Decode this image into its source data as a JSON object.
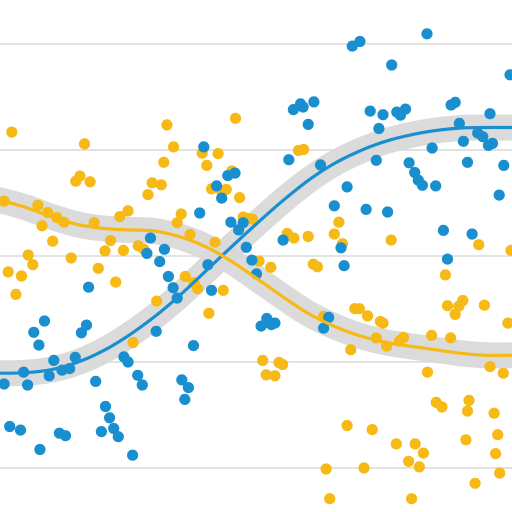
{
  "chart_data": {
    "type": "scatter",
    "title": "",
    "xlabel": "",
    "ylabel": "",
    "xlim": [
      0,
      100
    ],
    "ylim": [
      0,
      100
    ],
    "grid": true,
    "gridlines_y": [
      8.6,
      29.3,
      50.0,
      70.7,
      91.4
    ],
    "series": [
      {
        "color": "#1a8fd0",
        "smooth_band_color": "#d9d9d9",
        "trend": [
          [
            0,
            27.1
          ],
          [
            5,
            27.2
          ],
          [
            10,
            27.8
          ],
          [
            15,
            29.2
          ],
          [
            20,
            31.4
          ],
          [
            25,
            34.4
          ],
          [
            30,
            38.0
          ],
          [
            35,
            42.2
          ],
          [
            40,
            46.9
          ],
          [
            45,
            51.6
          ],
          [
            50,
            56.2
          ],
          [
            55,
            60.6
          ],
          [
            60,
            64.6
          ],
          [
            65,
            67.9
          ],
          [
            70,
            70.4
          ],
          [
            75,
            72.3
          ],
          [
            80,
            73.6
          ],
          [
            85,
            74.5
          ],
          [
            90,
            75.0
          ],
          [
            95,
            75.1
          ],
          [
            100,
            75.1
          ]
        ],
        "points": [
          [
            0.8,
            25.0
          ],
          [
            1.9,
            16.7
          ],
          [
            4.0,
            16.0
          ],
          [
            4.6,
            27.3
          ],
          [
            5.4,
            24.8
          ],
          [
            6.6,
            35.1
          ],
          [
            7.6,
            32.6
          ],
          [
            7.8,
            12.2
          ],
          [
            8.7,
            37.3
          ],
          [
            9.6,
            26.6
          ],
          [
            10.5,
            29.6
          ],
          [
            11.6,
            15.4
          ],
          [
            12.1,
            27.7
          ],
          [
            12.8,
            14.9
          ],
          [
            13.6,
            28.0
          ],
          [
            14.7,
            30.2
          ],
          [
            15.9,
            35.0
          ],
          [
            16.9,
            36.5
          ],
          [
            17.3,
            43.9
          ],
          [
            18.7,
            25.5
          ],
          [
            19.8,
            15.7
          ],
          [
            20.6,
            20.6
          ],
          [
            21.4,
            18.4
          ],
          [
            22.2,
            16.3
          ],
          [
            23.1,
            14.7
          ],
          [
            24.2,
            30.3
          ],
          [
            25.0,
            29.3
          ],
          [
            25.9,
            11.1
          ],
          [
            26.9,
            26.7
          ],
          [
            27.8,
            24.8
          ],
          [
            28.7,
            50.5
          ],
          [
            29.4,
            53.5
          ],
          [
            30.5,
            35.3
          ],
          [
            31.2,
            48.9
          ],
          [
            32.1,
            51.3
          ],
          [
            32.9,
            46.0
          ],
          [
            33.8,
            43.8
          ],
          [
            34.6,
            41.8
          ],
          [
            35.5,
            25.8
          ],
          [
            36.1,
            22.0
          ],
          [
            36.8,
            24.3
          ],
          [
            37.8,
            32.5
          ],
          [
            39.0,
            58.4
          ],
          [
            39.8,
            71.3
          ],
          [
            40.6,
            48.3
          ],
          [
            41.3,
            43.3
          ],
          [
            42.3,
            63.7
          ],
          [
            43.3,
            61.3
          ],
          [
            44.5,
            65.7
          ],
          [
            45.1,
            56.6
          ],
          [
            45.9,
            66.2
          ],
          [
            46.6,
            55.1
          ],
          [
            47.5,
            56.5
          ],
          [
            48.1,
            51.7
          ],
          [
            49.2,
            49.2
          ],
          [
            50.1,
            46.5
          ],
          [
            51.0,
            36.3
          ],
          [
            52.1,
            37.8
          ],
          [
            53.0,
            36.6
          ],
          [
            53.7,
            36.9
          ],
          [
            55.3,
            53.1
          ],
          [
            56.4,
            68.8
          ],
          [
            57.3,
            78.6
          ],
          [
            58.7,
            79.7
          ],
          [
            59.2,
            79.1
          ],
          [
            60.2,
            75.7
          ],
          [
            61.3,
            80.1
          ],
          [
            62.6,
            67.8
          ],
          [
            63.2,
            35.9
          ],
          [
            64.2,
            38.0
          ],
          [
            65.3,
            59.8
          ],
          [
            66.6,
            51.6
          ],
          [
            67.2,
            48.1
          ],
          [
            67.8,
            63.5
          ],
          [
            68.8,
            91.0
          ],
          [
            70.3,
            91.9
          ],
          [
            71.5,
            59.1
          ],
          [
            72.3,
            78.3
          ],
          [
            73.5,
            68.7
          ],
          [
            74.0,
            74.9
          ],
          [
            74.8,
            77.6
          ],
          [
            75.7,
            58.6
          ],
          [
            76.5,
            87.3
          ],
          [
            77.5,
            78.1
          ],
          [
            78.2,
            77.5
          ],
          [
            79.2,
            78.7
          ],
          [
            79.9,
            68.2
          ],
          [
            81.0,
            66.3
          ],
          [
            81.7,
            64.8
          ],
          [
            82.5,
            63.8
          ],
          [
            83.4,
            93.4
          ],
          [
            84.4,
            71.1
          ],
          [
            85.1,
            63.7
          ],
          [
            86.6,
            55.0
          ],
          [
            87.4,
            49.4
          ],
          [
            88.1,
            79.5
          ],
          [
            88.9,
            80.0
          ],
          [
            89.7,
            75.9
          ],
          [
            90.5,
            72.4
          ],
          [
            91.3,
            68.3
          ],
          [
            92.2,
            54.3
          ],
          [
            93.3,
            74.0
          ],
          [
            94.3,
            73.3
          ],
          [
            95.4,
            71.6
          ],
          [
            95.7,
            77.8
          ],
          [
            96.2,
            72.0
          ],
          [
            97.5,
            61.9
          ],
          [
            98.4,
            67.7
          ],
          [
            99.6,
            85.4
          ]
        ]
      },
      {
        "color": "#f6b915",
        "smooth_band_color": "#d9d9d9",
        "trend": [
          [
            0,
            60.9
          ],
          [
            5,
            59.5
          ],
          [
            10,
            57.7
          ],
          [
            15,
            56.2
          ],
          [
            20,
            55.4
          ],
          [
            25,
            55.1
          ],
          [
            30,
            54.9
          ],
          [
            35,
            53.8
          ],
          [
            40,
            51.9
          ],
          [
            45,
            49.1
          ],
          [
            50,
            45.7
          ],
          [
            55,
            42.2
          ],
          [
            60,
            38.9
          ],
          [
            65,
            36.4
          ],
          [
            70,
            34.5
          ],
          [
            75,
            33.2
          ],
          [
            80,
            32.4
          ],
          [
            85,
            31.7
          ],
          [
            90,
            31.0
          ],
          [
            95,
            30.6
          ],
          [
            100,
            30.6
          ]
        ],
        "points": [
          [
            0.8,
            60.7
          ],
          [
            1.6,
            46.9
          ],
          [
            2.3,
            74.2
          ],
          [
            3.1,
            42.5
          ],
          [
            4.2,
            46.1
          ],
          [
            5.5,
            50.2
          ],
          [
            6.4,
            48.3
          ],
          [
            7.4,
            59.9
          ],
          [
            8.2,
            55.9
          ],
          [
            9.3,
            58.5
          ],
          [
            10.3,
            52.9
          ],
          [
            11.1,
            57.5
          ],
          [
            12.5,
            56.6
          ],
          [
            13.9,
            49.6
          ],
          [
            14.8,
            64.6
          ],
          [
            15.6,
            65.6
          ],
          [
            16.5,
            71.9
          ],
          [
            17.6,
            64.5
          ],
          [
            18.4,
            56.5
          ],
          [
            19.2,
            47.6
          ],
          [
            20.5,
            51.0
          ],
          [
            21.6,
            53.0
          ],
          [
            22.6,
            44.9
          ],
          [
            23.4,
            57.7
          ],
          [
            24.1,
            51.1
          ],
          [
            25.0,
            58.8
          ],
          [
            26.0,
            33.1
          ],
          [
            27.0,
            52.0
          ],
          [
            28.1,
            51.3
          ],
          [
            28.9,
            62.0
          ],
          [
            29.7,
            64.3
          ],
          [
            30.6,
            41.2
          ],
          [
            31.5,
            63.9
          ],
          [
            32.0,
            68.3
          ],
          [
            32.6,
            75.6
          ],
          [
            33.9,
            71.3
          ],
          [
            34.6,
            56.5
          ],
          [
            35.4,
            58.2
          ],
          [
            36.2,
            46.0
          ],
          [
            37.1,
            54.2
          ],
          [
            37.9,
            44.8
          ],
          [
            38.6,
            43.6
          ],
          [
            39.5,
            70.1
          ],
          [
            40.4,
            67.7
          ],
          [
            40.8,
            38.8
          ],
          [
            41.3,
            63.1
          ],
          [
            42.0,
            52.7
          ],
          [
            42.6,
            70.0
          ],
          [
            43.2,
            62.8
          ],
          [
            43.6,
            43.3
          ],
          [
            44.2,
            63.0
          ],
          [
            45.3,
            66.6
          ],
          [
            46.0,
            76.9
          ],
          [
            46.8,
            61.4
          ],
          [
            47.5,
            57.6
          ],
          [
            48.5,
            57.3
          ],
          [
            49.3,
            57.2
          ],
          [
            50.6,
            49.0
          ],
          [
            51.3,
            29.6
          ],
          [
            52.0,
            26.8
          ],
          [
            52.9,
            47.8
          ],
          [
            53.7,
            26.6
          ],
          [
            54.5,
            29.2
          ],
          [
            55.2,
            28.8
          ],
          [
            56.1,
            54.4
          ],
          [
            57.4,
            53.5
          ],
          [
            58.3,
            70.6
          ],
          [
            59.3,
            70.8
          ],
          [
            60.2,
            53.8
          ],
          [
            61.2,
            48.4
          ],
          [
            62.0,
            47.9
          ],
          [
            63.2,
            38.2
          ],
          [
            63.7,
            8.4
          ],
          [
            64.4,
            2.6
          ],
          [
            65.3,
            54.3
          ],
          [
            66.2,
            56.6
          ],
          [
            66.9,
            52.4
          ],
          [
            67.8,
            16.9
          ],
          [
            68.5,
            31.7
          ],
          [
            69.3,
            39.7
          ],
          [
            70.2,
            39.7
          ],
          [
            71.1,
            8.6
          ],
          [
            71.8,
            38.3
          ],
          [
            72.7,
            16.1
          ],
          [
            73.5,
            34.0
          ],
          [
            74.3,
            37.2
          ],
          [
            74.8,
            36.9
          ],
          [
            75.5,
            32.4
          ],
          [
            76.4,
            53.1
          ],
          [
            77.4,
            13.3
          ],
          [
            78.0,
            33.4
          ],
          [
            78.8,
            34.1
          ],
          [
            79.8,
            9.9
          ],
          [
            80.4,
            2.6
          ],
          [
            81.1,
            13.3
          ],
          [
            81.9,
            8.8
          ],
          [
            82.7,
            11.5
          ],
          [
            83.5,
            27.3
          ],
          [
            84.3,
            34.5
          ],
          [
            85.2,
            21.4
          ],
          [
            86.3,
            20.5
          ],
          [
            87.0,
            46.3
          ],
          [
            87.4,
            40.3
          ],
          [
            88.0,
            34.0
          ],
          [
            88.9,
            38.6
          ],
          [
            89.6,
            40.2
          ],
          [
            90.4,
            41.3
          ],
          [
            91.0,
            14.1
          ],
          [
            91.3,
            19.7
          ],
          [
            91.6,
            21.8
          ],
          [
            92.8,
            5.6
          ],
          [
            93.5,
            52.2
          ],
          [
            94.6,
            40.4
          ],
          [
            95.7,
            28.4
          ],
          [
            96.5,
            19.3
          ],
          [
            96.8,
            11.4
          ],
          [
            97.2,
            15.1
          ],
          [
            97.6,
            7.6
          ],
          [
            98.3,
            27.1
          ],
          [
            99.2,
            36.9
          ],
          [
            99.8,
            51.1
          ]
        ]
      }
    ]
  }
}
